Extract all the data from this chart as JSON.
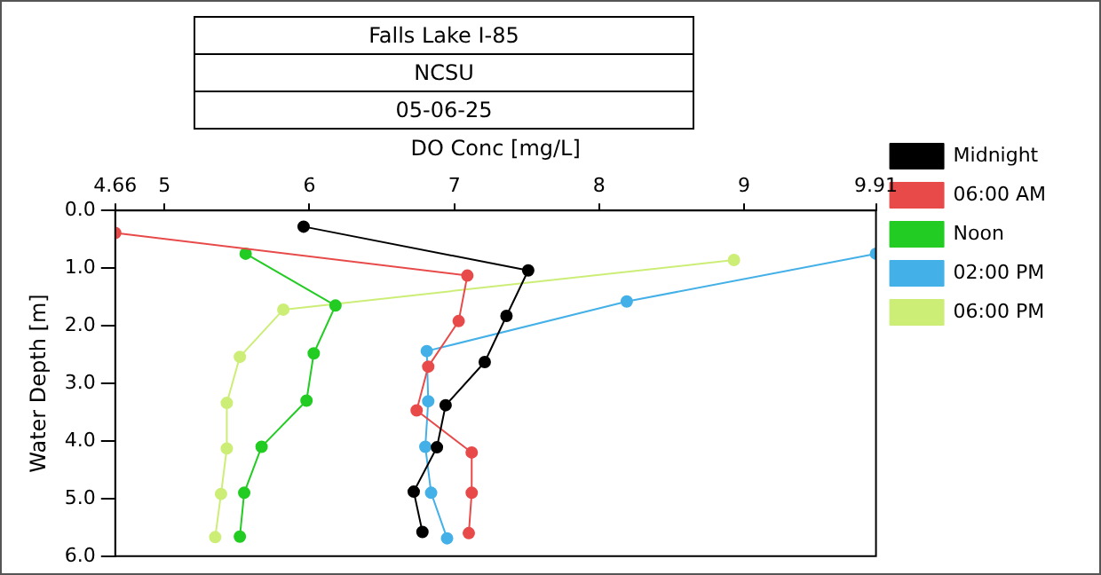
{
  "chart_data": {
    "type": "line",
    "title": "Falls Lake I-85",
    "subtitle": "NCSU",
    "annotations": [
      "05-06-25"
    ],
    "xlabel": "DO Conc [mg/L]",
    "ylabel": "Water Depth [m]",
    "xlim": [
      4.66,
      9.91
    ],
    "xticks": [
      4.66,
      5,
      6,
      7,
      8,
      9,
      9.91
    ],
    "ylim": [
      6.0,
      0.0
    ],
    "yticks": [
      {
        "value": 0,
        "label": "0.0"
      },
      {
        "value": 1,
        "label": "1.0"
      },
      {
        "value": 2,
        "label": "2.0"
      },
      {
        "value": 3,
        "label": "3.0"
      },
      {
        "value": 4,
        "label": "4.0"
      },
      {
        "value": 5,
        "label": "5.0"
      },
      {
        "value": 6,
        "label": "6.0"
      }
    ],
    "grid": false,
    "legend": "right",
    "marker": "circle",
    "line_style": "solid",
    "series": [
      {
        "name": "Midnight",
        "color": "#000000",
        "x": [
          5.96,
          7.51,
          7.36,
          7.21,
          6.94,
          6.88,
          6.72,
          6.78
        ],
        "values": [
          0.28,
          1.04,
          1.83,
          2.63,
          3.38,
          4.11,
          4.88,
          5.58
        ]
      },
      {
        "name": "06:00 AM",
        "color": "#e84a4a",
        "x": [
          4.66,
          7.09,
          7.03,
          6.82,
          6.74,
          7.12,
          7.12,
          7.1
        ],
        "values": [
          0.39,
          1.13,
          1.92,
          2.71,
          3.47,
          4.2,
          4.9,
          5.6
        ]
      },
      {
        "name": "Noon",
        "color": "#22cc22",
        "x": [
          5.56,
          6.18,
          6.03,
          5.98,
          5.67,
          5.55,
          5.52
        ],
        "values": [
          0.75,
          1.65,
          2.48,
          3.3,
          4.1,
          4.9,
          5.66
        ]
      },
      {
        "name": "02:00 PM",
        "color": "#44b0e8",
        "x": [
          9.91,
          8.19,
          6.81,
          6.82,
          6.8,
          6.84,
          6.95
        ],
        "values": [
          0.75,
          1.58,
          2.44,
          3.31,
          4.1,
          4.9,
          5.69
        ]
      },
      {
        "name": "06:00 PM",
        "color": "#ccee77",
        "x": [
          8.93,
          5.82,
          5.52,
          5.43,
          5.43,
          5.39,
          5.35
        ],
        "values": [
          0.86,
          1.72,
          2.54,
          3.34,
          4.13,
          4.92,
          5.67
        ]
      }
    ]
  }
}
